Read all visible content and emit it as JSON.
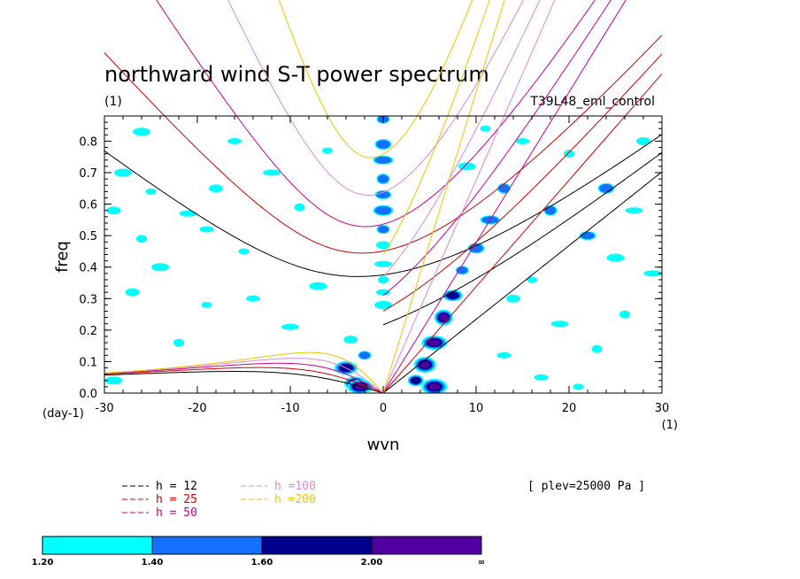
{
  "chart_data": {
    "type": "heatmap",
    "title": "northward wind S-T power spectrum",
    "subtitle_left": "(1)",
    "subtitle_right": "T39L48_eml_control",
    "xlabel": "wvn",
    "ylabel": "freq",
    "x_unit": "(1)",
    "y_unit": "(day-1)",
    "xlim": [
      -30,
      30
    ],
    "ylim": [
      0,
      0.88
    ],
    "x_ticks": [
      "-30",
      "-20",
      "-10",
      "0",
      "10",
      "20",
      "30"
    ],
    "y_ticks": [
      "0.0",
      "0.1",
      "0.2",
      "0.3",
      "0.4",
      "0.5",
      "0.6",
      "0.7",
      "0.8"
    ],
    "annotation": "[ plev=25000 Pa ]",
    "dispersion_curves": [
      {
        "label": "h = 12",
        "color": "#000000",
        "equivalent_depth_m": 12
      },
      {
        "label": "h = 25",
        "color": "#d00000",
        "equivalent_depth_m": 25
      },
      {
        "label": "h = 50",
        "color": "#c8008c",
        "equivalent_depth_m": 50
      },
      {
        "label": "h =100",
        "color": "#d68cd6",
        "equivalent_depth_m": 100
      },
      {
        "label": "h =200",
        "color": "#e6c800",
        "equivalent_depth_m": 200
      }
    ],
    "contour_levels": [
      {
        "range": [
          1.2,
          1.4
        ],
        "color": "#00ffff"
      },
      {
        "range": [
          1.4,
          1.6
        ],
        "color": "#1470ff"
      },
      {
        "range": [
          1.6,
          2.0
        ],
        "color": "#00008c"
      },
      {
        "range": [
          2.0,
          "inf"
        ],
        "color": "#5000a0"
      }
    ],
    "colorbar_labels": [
      "1.20",
      "1.40",
      "1.60",
      "2.00",
      "∞"
    ],
    "power_features": [
      {
        "x": 0,
        "y": 0.87,
        "level": 1
      },
      {
        "x": 0,
        "y": 0.79,
        "level": 1
      },
      {
        "x": 0,
        "y": 0.74,
        "level": 1
      },
      {
        "x": 0,
        "y": 0.68,
        "level": 1
      },
      {
        "x": 0,
        "y": 0.63,
        "level": 1
      },
      {
        "x": 0,
        "y": 0.58,
        "level": 1
      },
      {
        "x": 0,
        "y": 0.52,
        "level": 1
      },
      {
        "x": 0,
        "y": 0.47,
        "level": 0
      },
      {
        "x": 0,
        "y": 0.41,
        "level": 0
      },
      {
        "x": 0,
        "y": 0.36,
        "level": 0
      },
      {
        "x": 0,
        "y": 0.32,
        "level": 0
      },
      {
        "x": 0,
        "y": 0.28,
        "level": 0
      },
      {
        "x": 3.5,
        "y": 0.04,
        "level": 2
      },
      {
        "x": 4.5,
        "y": 0.09,
        "level": 3
      },
      {
        "x": 5.5,
        "y": 0.16,
        "level": 3
      },
      {
        "x": 6.5,
        "y": 0.24,
        "level": 3
      },
      {
        "x": 7.5,
        "y": 0.31,
        "level": 2
      },
      {
        "x": 5.5,
        "y": 0.02,
        "level": 3
      },
      {
        "x": 8.5,
        "y": 0.39,
        "level": 1
      },
      {
        "x": 10,
        "y": 0.46,
        "level": 1
      },
      {
        "x": 11.5,
        "y": 0.55,
        "level": 1
      },
      {
        "x": 13,
        "y": 0.65,
        "level": 1
      },
      {
        "x": -3,
        "y": 0.03,
        "level": 3
      },
      {
        "x": -4,
        "y": 0.08,
        "level": 2
      },
      {
        "x": -2,
        "y": 0.12,
        "level": 1
      },
      {
        "x": -3.5,
        "y": 0.17,
        "level": 0
      },
      {
        "x": -2.5,
        "y": 0.02,
        "level": 3
      },
      {
        "x": 18,
        "y": 0.58,
        "level": 1
      },
      {
        "x": 22,
        "y": 0.5,
        "level": 1
      },
      {
        "x": 25,
        "y": 0.43,
        "level": 0
      },
      {
        "x": 16,
        "y": 0.36,
        "level": 0
      },
      {
        "x": 24,
        "y": 0.65,
        "level": 1
      },
      {
        "x": 27,
        "y": 0.58,
        "level": 0
      },
      {
        "x": 20,
        "y": 0.76,
        "level": 0
      },
      {
        "x": 15,
        "y": 0.8,
        "level": 0
      },
      {
        "x": 9,
        "y": 0.72,
        "level": 0
      },
      {
        "x": 11,
        "y": 0.84,
        "level": 0
      },
      {
        "x": 14,
        "y": 0.3,
        "level": 0
      },
      {
        "x": 19,
        "y": 0.22,
        "level": 0
      },
      {
        "x": 23,
        "y": 0.14,
        "level": 0
      },
      {
        "x": 13,
        "y": 0.12,
        "level": 0
      },
      {
        "x": -28,
        "y": 0.7,
        "level": 0
      },
      {
        "x": -25,
        "y": 0.64,
        "level": 0
      },
      {
        "x": -29,
        "y": 0.58,
        "level": 0
      },
      {
        "x": -21,
        "y": 0.57,
        "level": 0
      },
      {
        "x": -26,
        "y": 0.49,
        "level": 0
      },
      {
        "x": -19,
        "y": 0.52,
        "level": 0
      },
      {
        "x": -24,
        "y": 0.4,
        "level": 0
      },
      {
        "x": -15,
        "y": 0.45,
        "level": 0
      },
      {
        "x": -18,
        "y": 0.65,
        "level": 0
      },
      {
        "x": -12,
        "y": 0.7,
        "level": 0
      },
      {
        "x": -9,
        "y": 0.59,
        "level": 0
      },
      {
        "x": -14,
        "y": 0.3,
        "level": 0
      },
      {
        "x": -7,
        "y": 0.34,
        "level": 0
      },
      {
        "x": -19,
        "y": 0.28,
        "level": 0
      },
      {
        "x": -27,
        "y": 0.32,
        "level": 0
      },
      {
        "x": -10,
        "y": 0.21,
        "level": 0
      },
      {
        "x": -22,
        "y": 0.16,
        "level": 0
      },
      {
        "x": -16,
        "y": 0.8,
        "level": 0
      },
      {
        "x": -26,
        "y": 0.83,
        "level": 0
      },
      {
        "x": -6,
        "y": 0.77,
        "level": 0
      },
      {
        "x": 28,
        "y": 0.8,
        "level": 0
      },
      {
        "x": 29,
        "y": 0.38,
        "level": 0
      },
      {
        "x": 26,
        "y": 0.25,
        "level": 0
      },
      {
        "x": 17,
        "y": 0.05,
        "level": 0
      },
      {
        "x": -29,
        "y": 0.04,
        "level": 0
      },
      {
        "x": 21,
        "y": 0.02,
        "level": 0
      }
    ]
  }
}
